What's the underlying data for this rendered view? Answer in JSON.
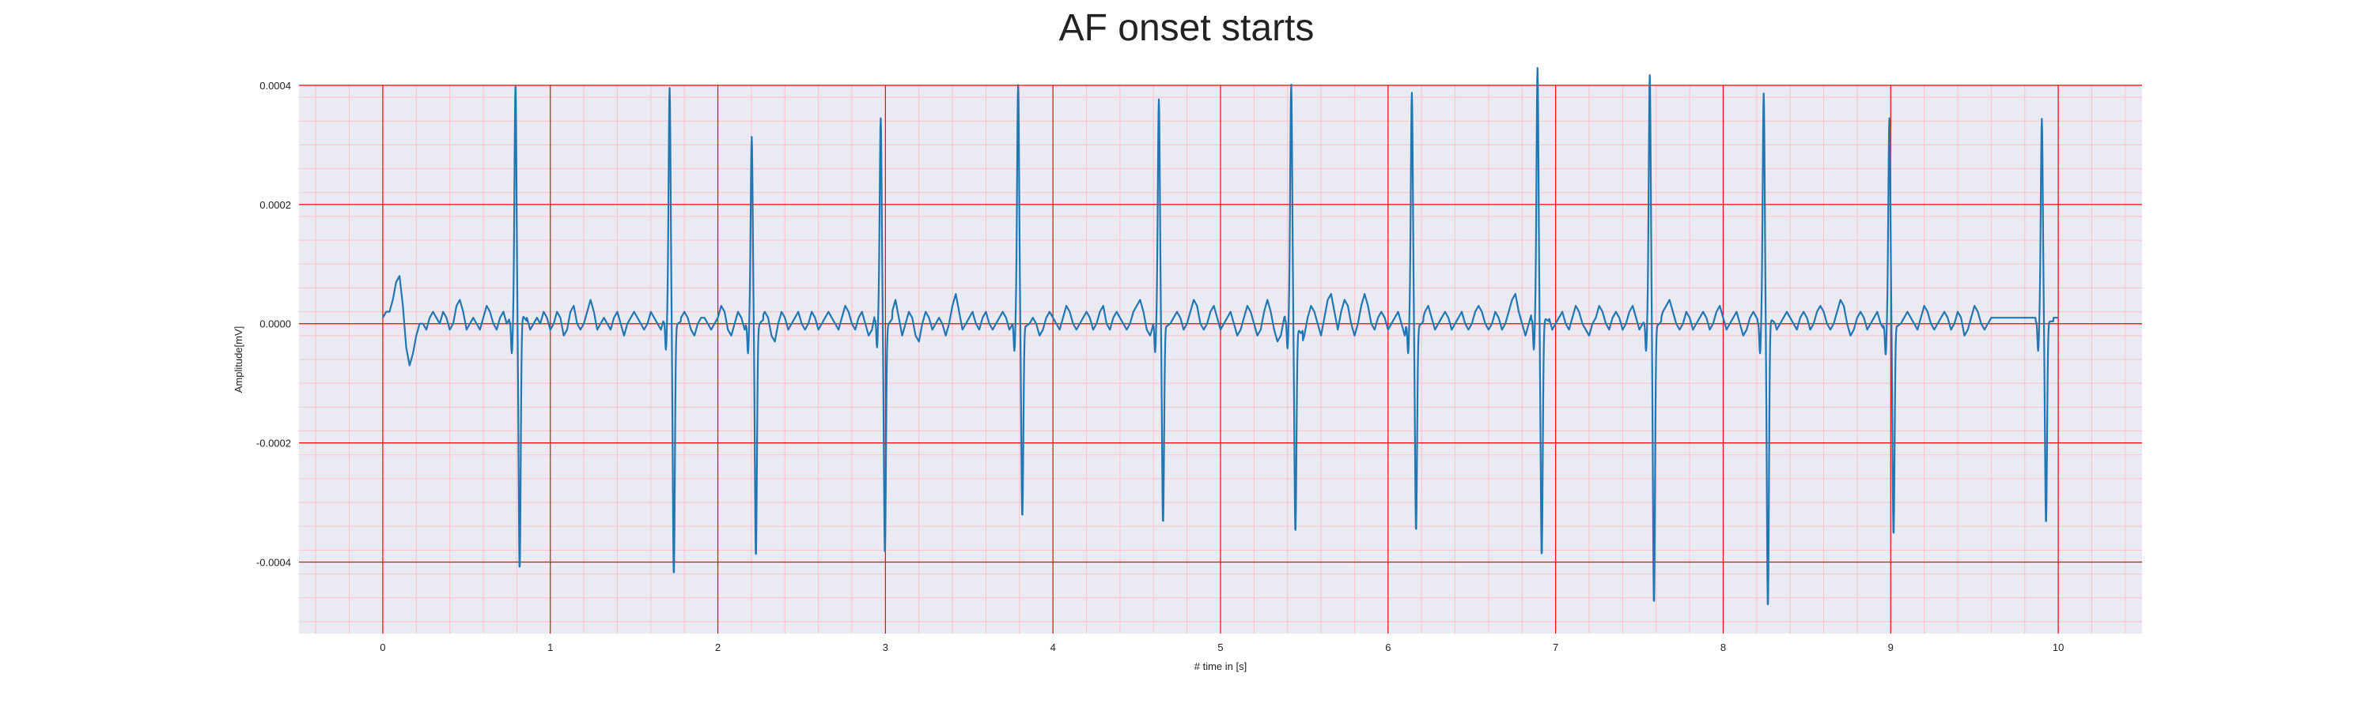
{
  "chart_data": {
    "type": "line",
    "title": "AF onset starts",
    "xlabel": "# time in [s]",
    "ylabel": "Amplitude[mV]",
    "xlim": [
      -0.5,
      10.5
    ],
    "ylim": [
      -0.00052,
      0.0004
    ],
    "x_ticks": [
      0,
      1,
      2,
      3,
      4,
      5,
      6,
      7,
      8,
      9,
      10
    ],
    "x_tick_labels": [
      "0",
      "1",
      "2",
      "3",
      "4",
      "5",
      "6",
      "7",
      "8",
      "9",
      "10"
    ],
    "y_ticks": [
      0.0004,
      0.0002,
      0.0,
      -0.0002,
      -0.0004
    ],
    "y_tick_labels": [
      "0.0004",
      "0.0002",
      "0.0000",
      "-0.0002",
      "-0.0004"
    ],
    "grid": true,
    "minor_grid": true,
    "legend": "none",
    "colors": {
      "background": "#eaeaf2",
      "major_grid": "#ff0000",
      "minor_grid": "#ffc0cb",
      "line": "#1f77b4"
    },
    "series": [
      {
        "sample_rate_hz": 50,
        "x_start": 0,
        "x_end": 10,
        "baseline": [
          1e-05,
          2e-05,
          2e-05,
          4e-05,
          7e-05,
          8e-05,
          3e-05,
          -4e-05,
          -7e-05,
          -5e-05,
          -2e-05,
          0.0,
          0.0,
          -1e-05,
          1e-05,
          2e-05,
          1e-05,
          0.0,
          2e-05,
          1e-05,
          -1e-05,
          0.0,
          3e-05,
          4e-05,
          2e-05,
          -1e-05,
          0.0,
          1e-05,
          0.0,
          -1e-05,
          1e-05,
          3e-05,
          2e-05,
          0.0,
          -1e-05,
          1e-05,
          2e-05,
          0.0,
          1e-05,
          -1e-05,
          0.0,
          2e-05,
          3e-05,
          1e-05,
          -1e-05,
          0.0,
          1e-05,
          0.0,
          2e-05,
          1e-05,
          -1e-05,
          0.0,
          2e-05,
          1e-05,
          -2e-05,
          -1e-05,
          2e-05,
          3e-05,
          0.0,
          -1e-05,
          0.0,
          2e-05,
          4e-05,
          2e-05,
          -1e-05,
          0.0,
          1e-05,
          0.0,
          -1e-05,
          1e-05,
          2e-05,
          0.0,
          -2e-05,
          0.0,
          1e-05,
          2e-05,
          1e-05,
          0.0,
          -1e-05,
          0.0,
          2e-05,
          1e-05,
          0.0,
          -1e-05,
          1e-05,
          2e-05,
          1e-05,
          -1e-05,
          0.0,
          1e-05,
          2e-05,
          1e-05,
          -1e-05,
          -2e-05,
          0.0,
          1e-05,
          1e-05,
          0.0,
          -1e-05,
          0.0,
          1e-05,
          3e-05,
          2e-05,
          -1e-05,
          -2e-05,
          0.0,
          2e-05,
          1e-05,
          -1e-05,
          0.0,
          1e-05,
          0.0,
          -1e-05,
          1e-05,
          2e-05,
          1e-05,
          -2e-05,
          -3e-05,
          0.0,
          2e-05,
          1e-05,
          -1e-05,
          0.0,
          1e-05,
          2e-05,
          0.0,
          -1e-05,
          0.0,
          2e-05,
          1e-05,
          -1e-05,
          0.0,
          1e-05,
          2e-05,
          1e-05,
          0.0,
          -1e-05,
          1e-05,
          3e-05,
          2e-05,
          0.0,
          -1e-05,
          1e-05,
          2e-05,
          0.0,
          -2e-05,
          -1e-05,
          2e-05,
          3e-05,
          0.0,
          -2e-05,
          0.0,
          2e-05,
          4e-05,
          1e-05,
          -2e-05,
          0.0,
          2e-05,
          1e-05,
          -2e-05,
          -3e-05,
          0.0,
          2e-05,
          1e-05,
          -1e-05,
          0.0,
          1e-05,
          0.0,
          -2e-05,
          0.0,
          3e-05,
          5e-05,
          2e-05,
          -1e-05,
          0.0,
          1e-05,
          2e-05,
          0.0,
          -1e-05,
          1e-05,
          2e-05,
          0.0,
          -1e-05,
          0.0,
          1e-05,
          2e-05,
          1e-05,
          -1e-05,
          0.0,
          2e-05,
          3e-05,
          1e-05,
          -1e-05,
          0.0,
          1e-05,
          0.0,
          -2e-05,
          -1e-05,
          1e-05,
          2e-05,
          1e-05,
          0.0,
          -1e-05,
          1e-05,
          3e-05,
          2e-05,
          0.0,
          -1e-05,
          0.0,
          1e-05,
          2e-05,
          1e-05,
          -1e-05,
          0.0,
          2e-05,
          3e-05,
          0.0,
          -1e-05,
          1e-05,
          2e-05,
          1e-05,
          0.0,
          -1e-05,
          0.0,
          2e-05,
          3e-05,
          4e-05,
          2e-05,
          -1e-05,
          -2e-05,
          0.0,
          1e-05,
          2e-05,
          1e-05,
          -1e-05,
          0.0,
          1e-05,
          2e-05,
          1e-05,
          -1e-05,
          0.0,
          2e-05,
          4e-05,
          3e-05,
          0.0,
          -1e-05,
          0.0,
          2e-05,
          3e-05,
          1e-05,
          -1e-05,
          0.0,
          1e-05,
          2e-05,
          0.0,
          -2e-05,
          -1e-05,
          1e-05,
          3e-05,
          2e-05,
          0.0,
          -2e-05,
          -1e-05,
          2e-05,
          4e-05,
          2e-05,
          -1e-05,
          -3e-05,
          -2e-05,
          1e-05,
          2e-05,
          3e-05,
          1e-05,
          -2e-05,
          -4e-05,
          -2e-05,
          1e-05,
          3e-05,
          2e-05,
          0.0,
          -2e-05,
          1e-05,
          4e-05,
          5e-05,
          2e-05,
          -1e-05,
          2e-05,
          4e-05,
          3e-05,
          0.0,
          -2e-05,
          0.0,
          3e-05,
          5e-05,
          3e-05,
          0.0,
          -1e-05,
          1e-05,
          2e-05,
          1e-05,
          -1e-05,
          0.0,
          1e-05,
          2e-05,
          0.0,
          -2e-05,
          0.0,
          2e-05,
          1e-05,
          -1e-05,
          0.0,
          2e-05,
          3e-05,
          1e-05,
          -1e-05,
          0.0,
          1e-05,
          2e-05,
          1e-05,
          -1e-05,
          0.0,
          1e-05,
          2e-05,
          0.0,
          -1e-05,
          0.0,
          2e-05,
          3e-05,
          2e-05,
          0.0,
          -1e-05,
          0.0,
          2e-05,
          1e-05,
          -1e-05,
          0.0,
          2e-05,
          4e-05,
          5e-05,
          2e-05,
          0.0,
          -2e-05,
          0.0,
          2e-05,
          1e-05,
          -1e-05,
          0.0,
          2e-05,
          1e-05,
          -1e-05,
          0.0,
          1e-05,
          2e-05,
          0.0,
          -1e-05,
          1e-05,
          3e-05,
          2e-05,
          0.0,
          -1e-05,
          -2e-05,
          0.0,
          1e-05,
          3e-05,
          2e-05,
          0.0,
          -1e-05,
          1e-05,
          2e-05,
          1e-05,
          -1e-05,
          0.0,
          2e-05,
          3e-05,
          1e-05,
          -1e-05,
          0.0,
          1e-05,
          2e-05,
          0.0,
          -1e-05,
          0.0,
          2e-05,
          3e-05,
          4e-05,
          2e-05,
          0.0,
          -1e-05,
          0.0,
          2e-05,
          1e-05,
          -1e-05,
          0.0,
          1e-05,
          2e-05,
          1e-05,
          -1e-05,
          0.0,
          2e-05,
          3e-05,
          1e-05,
          -1e-05,
          0.0,
          1e-05,
          2e-05,
          0.0,
          -2e-05,
          -1e-05,
          1e-05,
          2e-05,
          1e-05,
          0.0,
          -1e-05,
          0.0,
          2e-05,
          1e-05,
          -1e-05,
          0.0,
          1e-05,
          2e-05,
          1e-05,
          0.0,
          -1e-05,
          1e-05,
          2e-05,
          1e-05,
          -1e-05,
          0.0,
          2e-05,
          3e-05,
          2e-05,
          0.0,
          -1e-05,
          0.0,
          2e-05,
          4e-05,
          3e-05,
          0.0,
          -2e-05,
          -1e-05,
          1e-05,
          2e-05,
          1e-05,
          -1e-05,
          0.0,
          1e-05,
          2e-05,
          0.0,
          -1e-05,
          0.0,
          2e-05,
          1e-05,
          -1e-05,
          0.0,
          1e-05,
          2e-05,
          1e-05,
          0.0,
          -1e-05,
          1e-05,
          3e-05,
          2e-05,
          0.0,
          -1e-05,
          0.0,
          1e-05,
          2e-05,
          1e-05,
          -1e-05,
          0.0,
          2e-05,
          1e-05,
          -2e-05,
          -1e-05,
          1e-05,
          3e-05,
          2e-05,
          0.0,
          -1e-05,
          0.0,
          1e-05
        ],
        "beats": [
          {
            "t": 0.8,
            "r_peak": 0.0004,
            "s_trough": -0.00042
          },
          {
            "t": 1.72,
            "r_peak": 0.00039,
            "s_trough": -0.00042
          },
          {
            "t": 2.21,
            "r_peak": 0.00031,
            "s_trough": -0.00039
          },
          {
            "t": 2.98,
            "r_peak": 0.00034,
            "s_trough": -0.00038
          },
          {
            "t": 3.8,
            "r_peak": 0.00039,
            "s_trough": -0.00033
          },
          {
            "t": 4.64,
            "r_peak": 0.00037,
            "s_trough": -0.00034
          },
          {
            "t": 5.43,
            "r_peak": 0.00039,
            "s_trough": -0.00035
          },
          {
            "t": 6.15,
            "r_peak": 0.00038,
            "s_trough": -0.00035
          },
          {
            "t": 6.9,
            "r_peak": 0.00043,
            "s_trough": -0.00039
          },
          {
            "t": 7.57,
            "r_peak": 0.00041,
            "s_trough": -0.00047
          },
          {
            "t": 8.25,
            "r_peak": 0.00039,
            "s_trough": -0.00048
          },
          {
            "t": 9.0,
            "r_peak": 0.00034,
            "s_trough": -0.00036
          },
          {
            "t": 9.91,
            "r_peak": 0.00034,
            "s_trough": -0.00034
          }
        ]
      }
    ]
  }
}
